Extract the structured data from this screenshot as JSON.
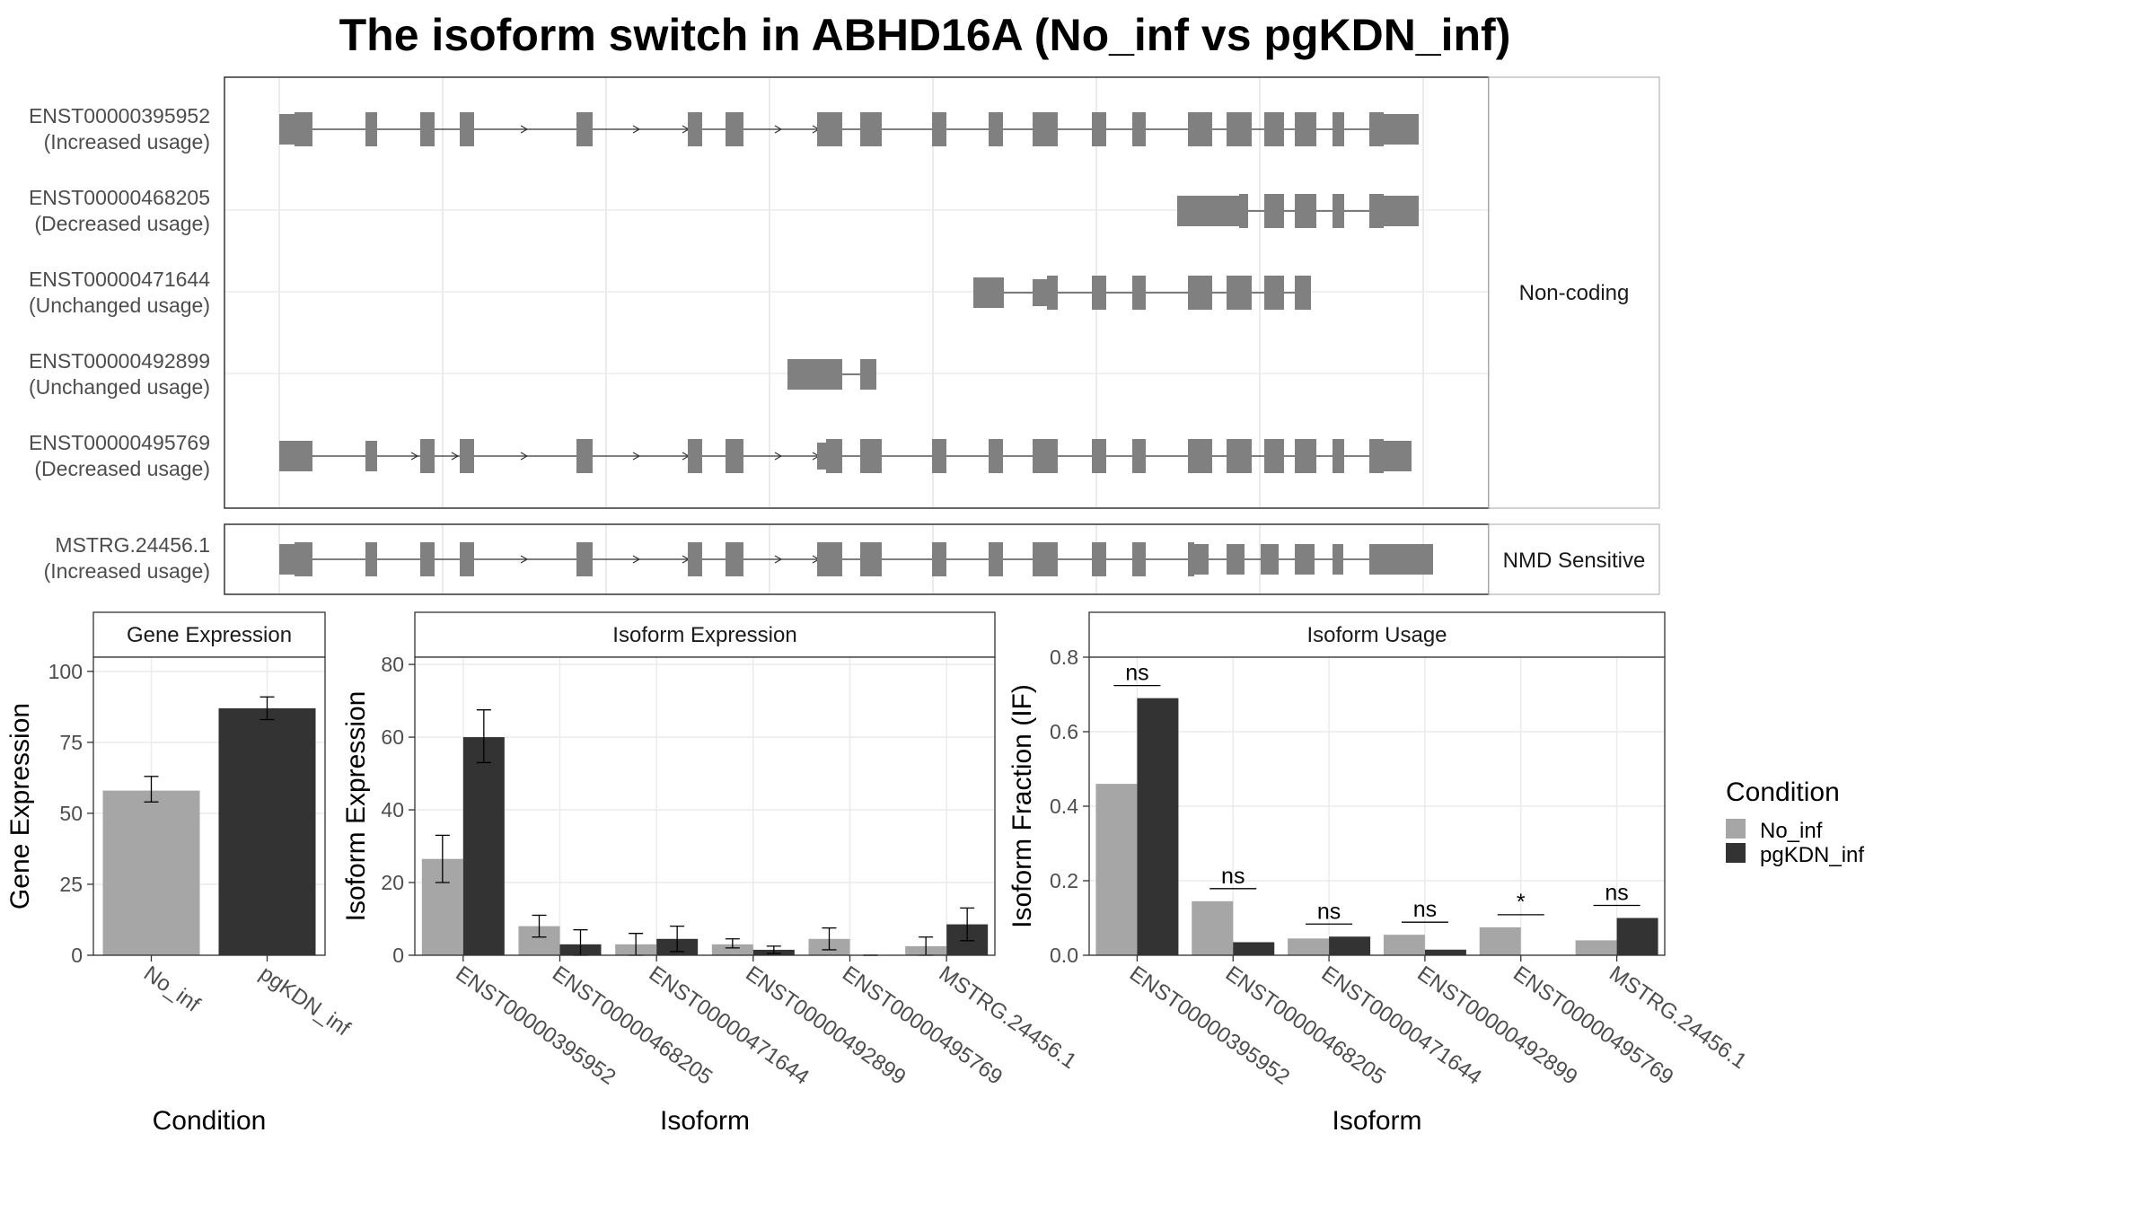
{
  "title": "The isoform switch in ABHD16A (No_inf vs pgKDN_inf)",
  "colors": {
    "no_inf": "#a6a6a6",
    "pgkdn_inf": "#333333",
    "exon": "#808080",
    "grid": "#ebebeb",
    "panel_border": "#333333",
    "strip_border": "#b3b3b3"
  },
  "legend": {
    "title": "Condition",
    "items": [
      {
        "label": "No_inf",
        "color": "#a6a6a6"
      },
      {
        "label": "pgKDN_inf",
        "color": "#333333"
      }
    ]
  },
  "transcript_panel": {
    "groups": [
      {
        "strip": "Non-coding",
        "transcripts": [
          {
            "id": "ENST00000395952",
            "usage": "(Increased usage)"
          },
          {
            "id": "ENST00000468205",
            "usage": "(Decreased usage)"
          },
          {
            "id": "ENST00000471644",
            "usage": "(Unchanged usage)"
          },
          {
            "id": "ENST00000492899",
            "usage": "(Unchanged usage)"
          },
          {
            "id": "ENST00000495769",
            "usage": "(Decreased usage)"
          }
        ]
      },
      {
        "strip": "NMD Sensitive",
        "transcripts": [
          {
            "id": "MSTRG.24456.1",
            "usage": "(Increased usage)"
          }
        ]
      }
    ]
  },
  "chart_data": [
    {
      "type": "bar",
      "strip": "Gene Expression",
      "xlabel": "Condition",
      "ylabel": "Gene Expression",
      "ylim": [
        0,
        105
      ],
      "yticks": [
        0,
        25,
        50,
        75,
        100
      ],
      "categories": [
        "No_inf",
        "pgKDN_inf"
      ],
      "values": [
        58,
        87
      ],
      "errors": [
        [
          54,
          63
        ],
        [
          83,
          91
        ]
      ]
    },
    {
      "type": "bar",
      "strip": "Isoform Expression",
      "xlabel": "Isoform",
      "ylabel": "Isoform Expression",
      "ylim": [
        0,
        82
      ],
      "yticks": [
        0,
        20,
        40,
        60,
        80
      ],
      "categories": [
        "ENST00000395952",
        "ENST00000468205",
        "ENST00000471644",
        "ENST00000492899",
        "ENST00000495769",
        "MSTRG.24456.1"
      ],
      "series": [
        {
          "name": "No_inf",
          "values": [
            26.5,
            8,
            3,
            3,
            4.5,
            2.5
          ],
          "errors": [
            [
              20,
              33
            ],
            [
              5,
              11
            ],
            [
              0,
              6
            ],
            [
              2,
              4.5
            ],
            [
              1.5,
              7.5
            ],
            [
              0,
              5
            ]
          ]
        },
        {
          "name": "pgKDN_inf",
          "values": [
            60,
            3,
            4.5,
            1.5,
            0,
            8.5
          ],
          "errors": [
            [
              53,
              67.5
            ],
            [
              0,
              7
            ],
            [
              1,
              8
            ],
            [
              0.5,
              2.5
            ],
            [
              0,
              0
            ],
            [
              4,
              13
            ]
          ]
        }
      ]
    },
    {
      "type": "bar",
      "strip": "Isoform Usage",
      "xlabel": "Isoform",
      "ylabel": "Isoform Fraction (IF)",
      "ylim": [
        0,
        0.8
      ],
      "yticks": [
        0.0,
        0.2,
        0.4,
        0.6,
        0.8
      ],
      "ytick_labels": [
        "0.0",
        "0.2",
        "0.4",
        "0.6",
        "0.8"
      ],
      "categories": [
        "ENST00000395952",
        "ENST00000468205",
        "ENST00000471644",
        "ENST00000492899",
        "ENST00000495769",
        "MSTRG.24456.1"
      ],
      "series": [
        {
          "name": "No_inf",
          "values": [
            0.46,
            0.145,
            0.045,
            0.055,
            0.075,
            0.04
          ]
        },
        {
          "name": "pgKDN_inf",
          "values": [
            0.69,
            0.035,
            0.05,
            0.015,
            0.0,
            0.1
          ]
        }
      ],
      "significance": [
        "ns",
        "ns",
        "ns",
        "ns",
        "*",
        "ns"
      ]
    }
  ]
}
